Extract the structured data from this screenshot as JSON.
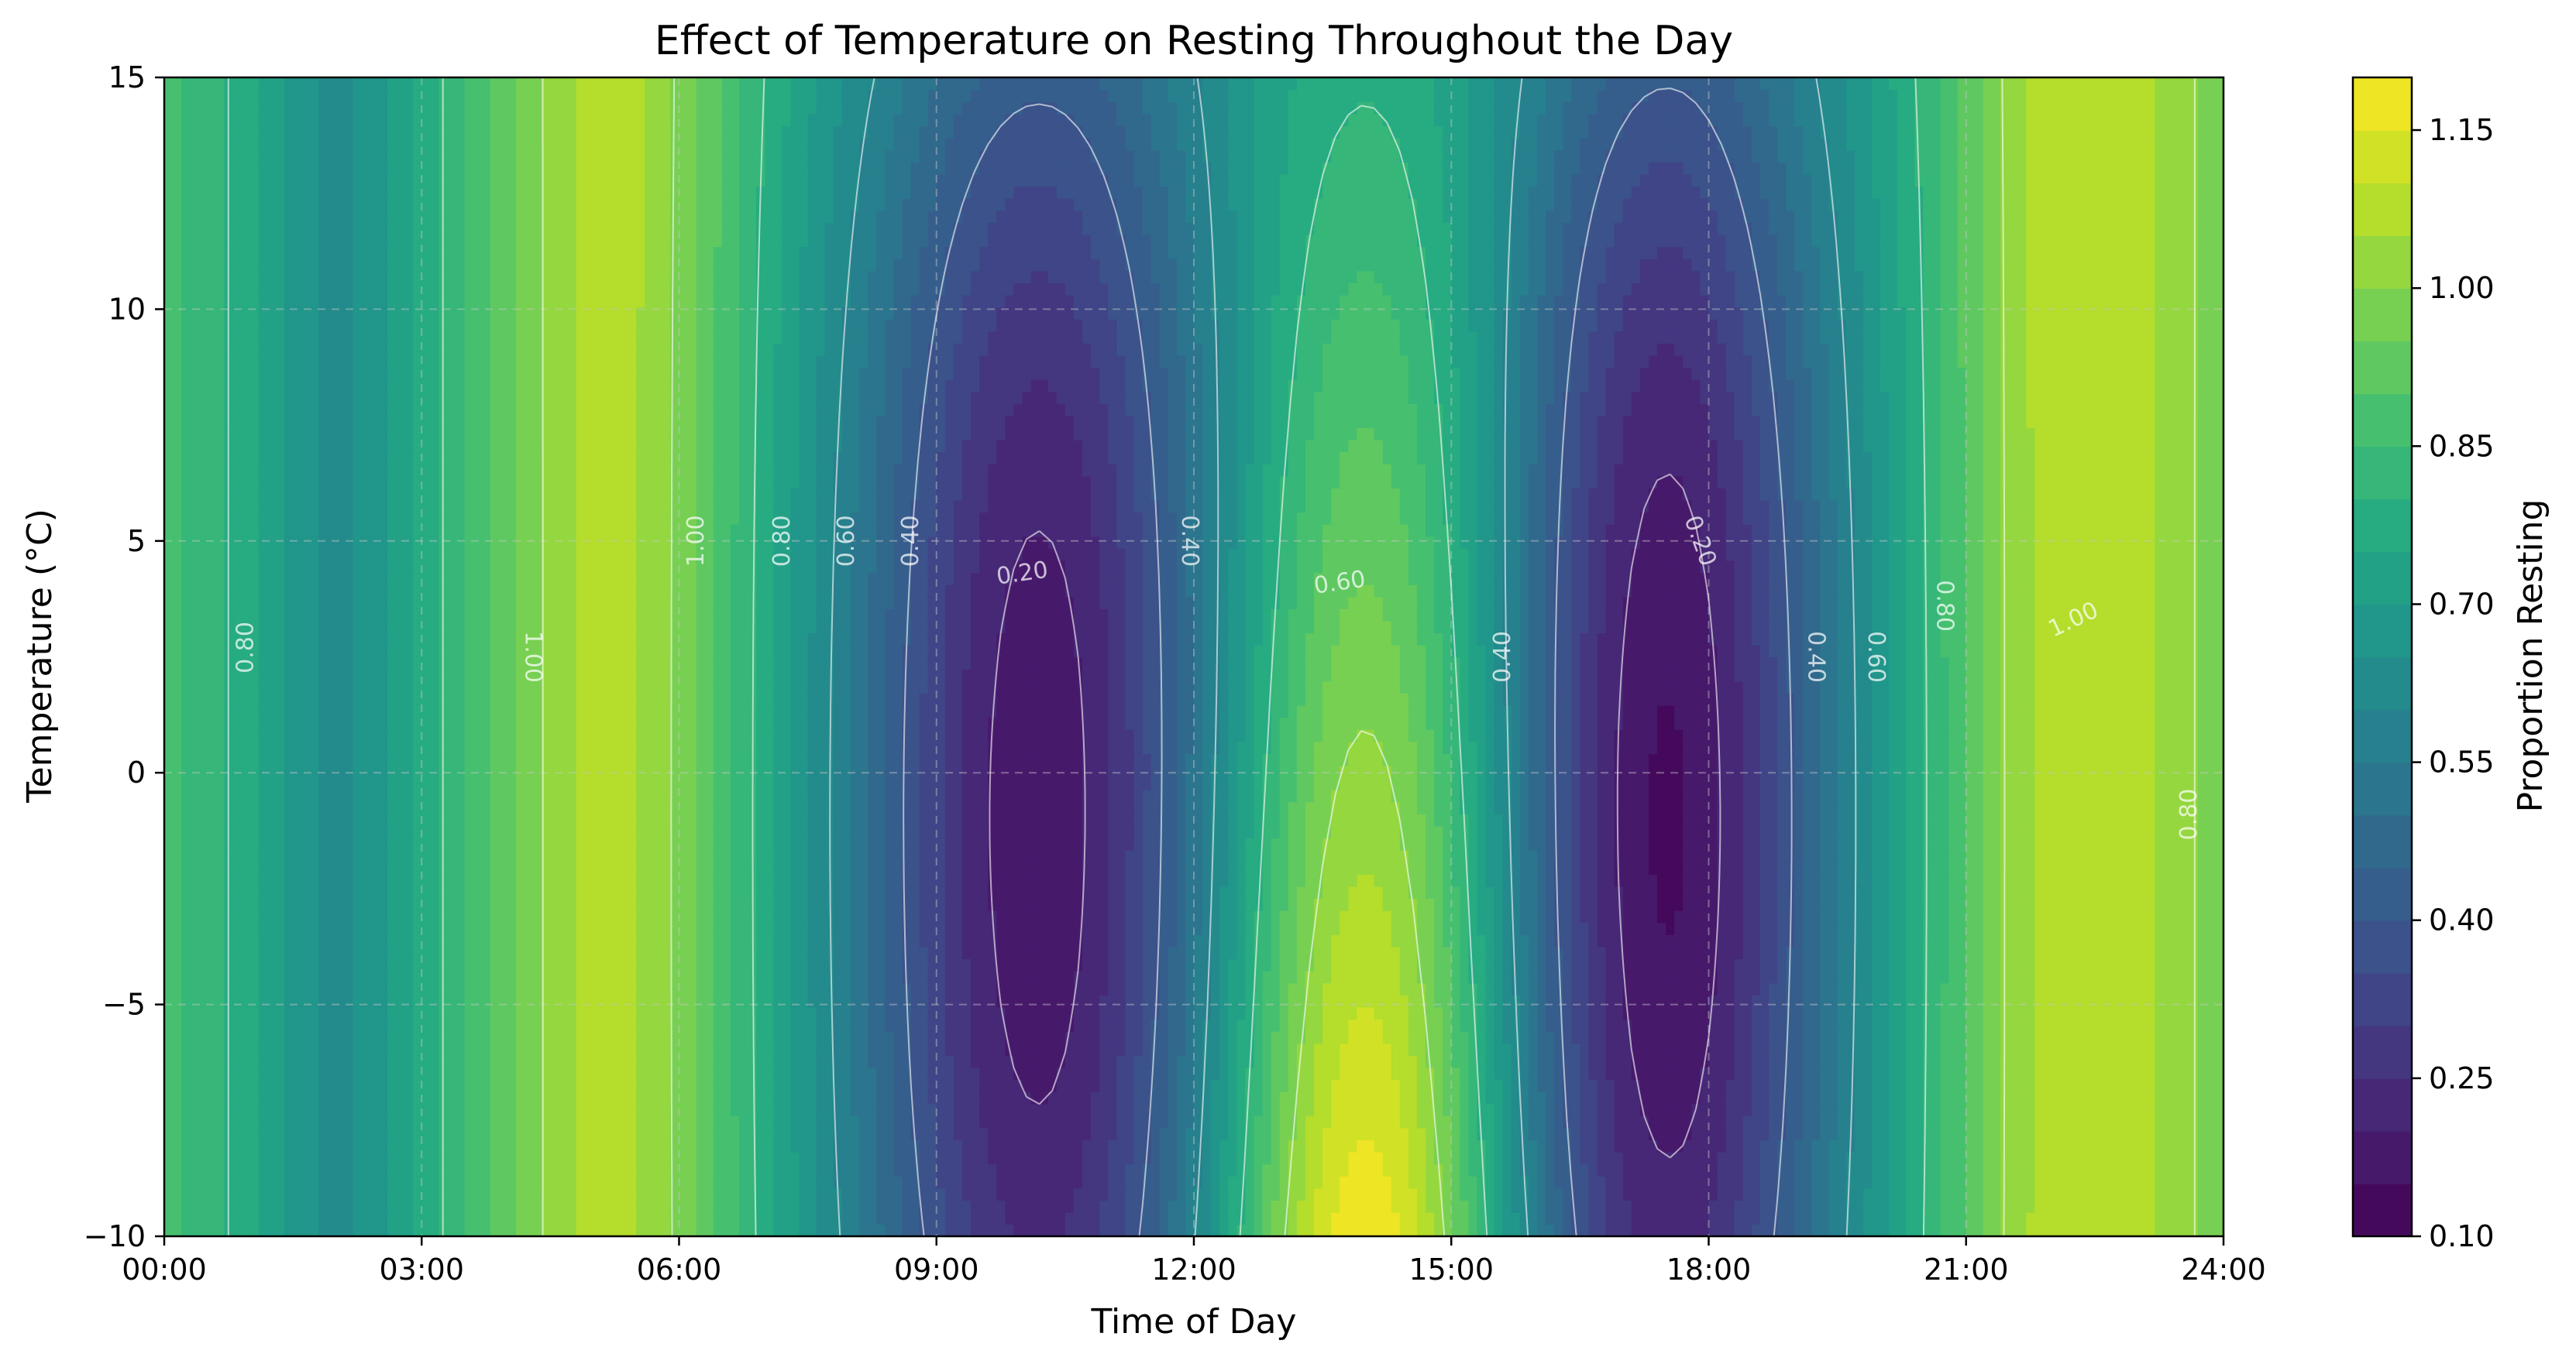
{
  "chart_data": {
    "type": "heatmap",
    "subtype": "filled-contour",
    "title": "Effect of Temperature on Resting Throughout the Day",
    "xlabel": "Time of Day",
    "ylabel": "Temperature (°C)",
    "colorbar_label": "Proportion Resting",
    "colormap": "viridis",
    "xlim": [
      0,
      24
    ],
    "ylim": [
      -10,
      15
    ],
    "x_ticks": [
      0,
      3,
      6,
      9,
      12,
      15,
      18,
      21,
      24
    ],
    "x_tick_labels": [
      "00:00",
      "03:00",
      "06:00",
      "09:00",
      "12:00",
      "15:00",
      "18:00",
      "21:00",
      "24:00"
    ],
    "y_ticks": [
      -10,
      -5,
      0,
      5,
      10,
      15
    ],
    "y_tick_labels": [
      "−10",
      "−5",
      "0",
      "5",
      "10",
      "15"
    ],
    "colorbar_range": [
      0.1,
      1.2
    ],
    "colorbar_ticks": [
      0.1,
      0.25,
      0.4,
      0.55,
      0.7,
      0.85,
      1.0,
      1.15
    ],
    "colorbar_tick_labels": [
      "0.10",
      "0.25",
      "0.40",
      "0.55",
      "0.70",
      "0.85",
      "1.00",
      "1.15"
    ],
    "colorbar_levels": 22,
    "grid": true,
    "contour_levels": [
      0.2,
      0.4,
      0.6,
      0.8,
      1.0
    ],
    "contour_labels": [
      {
        "text": "0.80",
        "x": 0.95,
        "y": 2.7,
        "angle": -90
      },
      {
        "text": "1.00",
        "x": 4.3,
        "y": 2.5,
        "angle": 90
      },
      {
        "text": "1.00",
        "x": 6.2,
        "y": 5.0,
        "angle": -90
      },
      {
        "text": "0.80",
        "x": 7.2,
        "y": 5.0,
        "angle": -90
      },
      {
        "text": "0.60",
        "x": 7.95,
        "y": 5.0,
        "angle": -90
      },
      {
        "text": "0.40",
        "x": 8.7,
        "y": 5.0,
        "angle": -90
      },
      {
        "text": "0.20",
        "x": 10.0,
        "y": 4.3,
        "angle": -8
      },
      {
        "text": "0.40",
        "x": 11.95,
        "y": 5.0,
        "angle": 90
      },
      {
        "text": "0.60",
        "x": 13.7,
        "y": 4.1,
        "angle": -8
      },
      {
        "text": "0.40",
        "x": 15.6,
        "y": 2.5,
        "angle": -90
      },
      {
        "text": "0.20",
        "x": 17.9,
        "y": 5.0,
        "angle": 70
      },
      {
        "text": "0.80",
        "x": 20.75,
        "y": 3.6,
        "angle": 90
      },
      {
        "text": "0.40",
        "x": 19.25,
        "y": 2.5,
        "angle": 90
      },
      {
        "text": "0.60",
        "x": 19.95,
        "y": 2.5,
        "angle": 90
      },
      {
        "text": "1.00",
        "x": 22.25,
        "y": 3.3,
        "angle": -25
      },
      {
        "text": "0.80",
        "x": 23.6,
        "y": -0.9,
        "angle": -90
      }
    ]
  }
}
